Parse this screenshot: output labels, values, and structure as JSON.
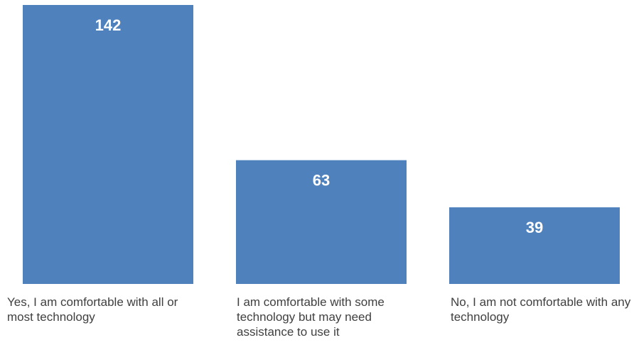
{
  "chart_data": {
    "type": "bar",
    "categories": [
      "Yes, I am comfortable with all or most technology",
      "I am comfortable with some technology but may need assistance to use it",
      "No, I am not comfortable with any technology"
    ],
    "values": [
      142,
      63,
      39
    ],
    "data_labels": [
      "142",
      "63",
      "39"
    ],
    "title": "",
    "xlabel": "",
    "ylabel": "",
    "ylim": [
      0,
      142
    ],
    "grid": false,
    "legend": "none",
    "colors": {
      "bar": "#4F81BD",
      "bar_label": "#FFFFFF",
      "category_text": "#404040"
    }
  }
}
